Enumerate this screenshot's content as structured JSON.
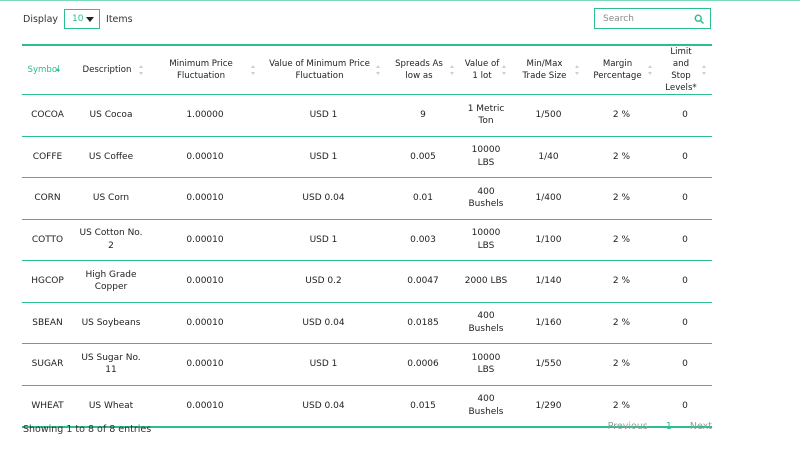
{
  "length_menu": {
    "prefix": "Display",
    "value": "10",
    "suffix": "Items"
  },
  "search": {
    "placeholder": "Search"
  },
  "columns": [
    "Symbol",
    "Description",
    "Minimum Price Fluctuation",
    "Value of Minimum Price Fluctuation",
    "Spreads As low as",
    "Value of 1 lot",
    "Min/Max Trade Size",
    "Margin Percentage",
    "Limit and Stop Levels*"
  ],
  "rows": [
    [
      "COCOA",
      "US Cocoa",
      "1.00000",
      "USD 1",
      "9",
      "1 Metric Ton",
      "1/500",
      "2 %",
      "0"
    ],
    [
      "COFFE",
      "US Coffee",
      "0.00010",
      "USD 1",
      "0.005",
      "10000 LBS",
      "1/40",
      "2 %",
      "0"
    ],
    [
      "CORN",
      "US Corn",
      "0.00010",
      "USD 0.04",
      "0.01",
      "400 Bushels",
      "1/400",
      "2 %",
      "0"
    ],
    [
      "COTTO",
      "US Cotton No. 2",
      "0.00010",
      "USD 1",
      "0.003",
      "10000 LBS",
      "1/100",
      "2 %",
      "0"
    ],
    [
      "HGCOP",
      "High Grade Copper",
      "0.00010",
      "USD 0.2",
      "0.0047",
      "2000 LBS",
      "1/140",
      "2 %",
      "0"
    ],
    [
      "SBEAN",
      "US Soybeans",
      "0.00010",
      "USD 0.04",
      "0.0185",
      "400 Bushels",
      "1/160",
      "2 %",
      "0"
    ],
    [
      "SUGAR",
      "US Sugar No. 11",
      "0.00010",
      "USD 1",
      "0.0006",
      "10000 LBS",
      "1/550",
      "2 %",
      "0"
    ],
    [
      "WHEAT",
      "US Wheat",
      "0.00010",
      "USD 0.04",
      "0.015",
      "400 Bushels",
      "1/290",
      "2 %",
      "0"
    ]
  ],
  "info": "Showing 1 to 8 of 8 entries",
  "pagination": {
    "previous": "Previous",
    "current": "1",
    "next": "Next"
  },
  "colors": {
    "accent": "#2bbf8e",
    "muted": "#9a9a9a",
    "text": "#222222"
  },
  "icons": {
    "search": "search-icon",
    "dropdown": "chevron-down-icon"
  }
}
